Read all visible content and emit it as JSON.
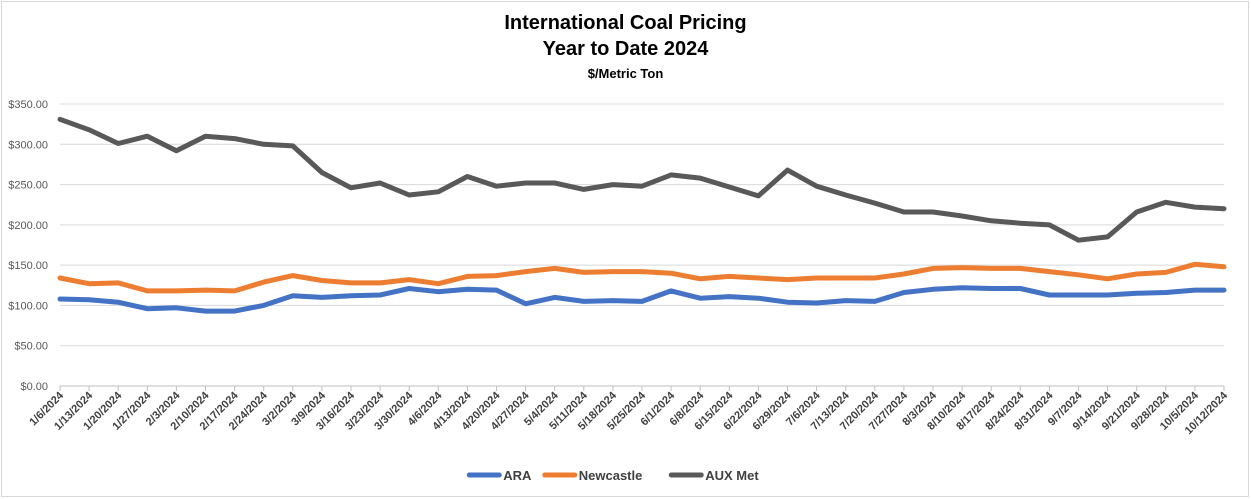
{
  "chart_data": {
    "type": "line",
    "title_line1": "International Coal Pricing",
    "title_line2": "Year to Date 2024",
    "subtitle": "$/Metric Ton",
    "ylim": [
      0,
      350
    ],
    "y_ticks": [
      0,
      50,
      100,
      150,
      200,
      250,
      300,
      350
    ],
    "y_tick_labels": [
      "$0.00",
      "$50.00",
      "$100.00",
      "$150.00",
      "$200.00",
      "$250.00",
      "$300.00",
      "$350.00"
    ],
    "grid": true,
    "legend_position": "bottom",
    "categories": [
      "1/6/2024",
      "1/13/2024",
      "1/20/2024",
      "1/27/2024",
      "2/3/2024",
      "2/10/2024",
      "2/17/2024",
      "2/24/2024",
      "3/2/2024",
      "3/9/2024",
      "3/16/2024",
      "3/23/2024",
      "3/30/2024",
      "4/6/2024",
      "4/13/2024",
      "4/20/2024",
      "4/27/2024",
      "5/4/2024",
      "5/11/2024",
      "5/18/2024",
      "5/25/2024",
      "6/1/2024",
      "6/8/2024",
      "6/15/2024",
      "6/22/2024",
      "6/29/2024",
      "7/6/2024",
      "7/13/2024",
      "7/20/2024",
      "7/27/2024",
      "8/3/2024",
      "8/10/2024",
      "8/17/2024",
      "8/24/2024",
      "8/31/2024",
      "9/7/2024",
      "9/14/2024",
      "9/21/2024",
      "9/28/2024",
      "10/5/2024",
      "10/12/2024"
    ],
    "series": [
      {
        "name": "ARA",
        "color": "#4472c4",
        "values": [
          108,
          107,
          104,
          96,
          97,
          93,
          93,
          100,
          112,
          110,
          112,
          113,
          121,
          117,
          120,
          119,
          102,
          110,
          105,
          106,
          105,
          118,
          109,
          111,
          109,
          104,
          103,
          106,
          105,
          116,
          120,
          122,
          121,
          121,
          113,
          113,
          113,
          115,
          116,
          119,
          119
        ]
      },
      {
        "name": "Newcastle",
        "color": "#ed7d31",
        "values": [
          134,
          127,
          128,
          118,
          118,
          119,
          118,
          129,
          137,
          131,
          128,
          128,
          132,
          127,
          136,
          137,
          142,
          146,
          141,
          142,
          142,
          140,
          133,
          136,
          134,
          132,
          134,
          134,
          134,
          139,
          146,
          147,
          146,
          146,
          142,
          138,
          133,
          139,
          141,
          151,
          148
        ]
      },
      {
        "name": "AUX Met",
        "color": "#595959",
        "values": [
          331,
          318,
          301,
          310,
          292,
          310,
          307,
          300,
          298,
          265,
          246,
          252,
          237,
          241,
          260,
          248,
          252,
          252,
          244,
          250,
          248,
          262,
          258,
          247,
          236,
          268,
          248,
          237,
          227,
          216,
          216,
          211,
          205,
          202,
          200,
          181,
          185,
          216,
          228,
          222,
          220
        ]
      }
    ]
  }
}
